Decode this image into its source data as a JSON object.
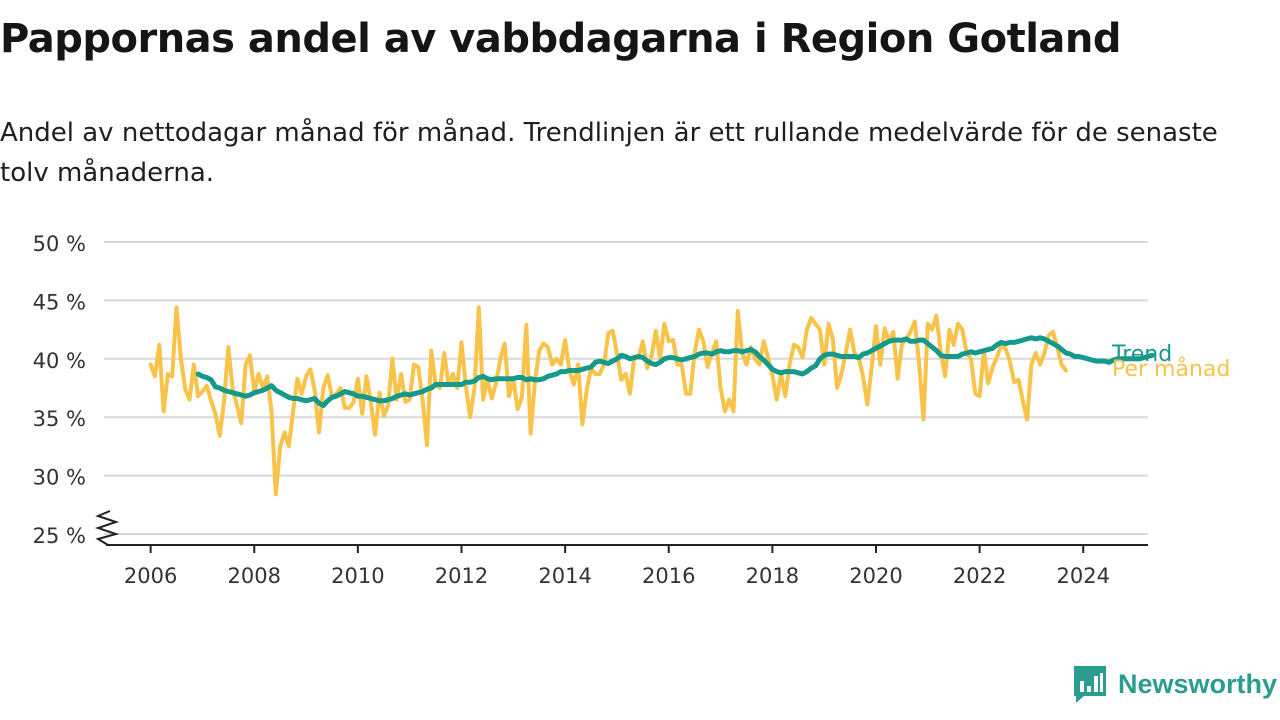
{
  "title": "Pappornas andel av vabbdagarna i Region Gotland",
  "subtitle": "Andel av nettodagar månad för månad. Trendlinjen är ett rullande medelvärde för de senaste tolv månaderna.",
  "brand": {
    "name": "Newsworthy",
    "icon": "newsworthy-chart-logo-icon",
    "color": "#2a9d8f"
  },
  "chart_data": {
    "type": "line",
    "title": "Pappornas andel av vabbdagarna i Region Gotland",
    "xlabel": "",
    "ylabel": "",
    "x_ticks": [
      2006,
      2008,
      2010,
      2012,
      2014,
      2016,
      2018,
      2020,
      2022,
      2024
    ],
    "x_tick_labels": [
      "2006",
      "2008",
      "2010",
      "2012",
      "2014",
      "2016",
      "2018",
      "2020",
      "2022",
      "2024"
    ],
    "xlim": [
      2005.1,
      2025.25
    ],
    "y_ticks": [
      25,
      30,
      35,
      40,
      45,
      50
    ],
    "y_tick_labels": [
      "25 %",
      "30 %",
      "35 %",
      "40 %",
      "45 %",
      "50 %"
    ],
    "ylim": [
      25,
      50
    ],
    "y_axis_break": true,
    "grid": true,
    "series": [
      {
        "name": "Per månad",
        "color": "#f9c349",
        "start": 2006.0,
        "step": 0.0833333,
        "values": [
          39.5,
          38.5,
          41.2,
          35.5,
          38.7,
          38.5,
          44.4,
          40,
          37.4,
          36.5,
          39.5,
          36.8,
          37.2,
          37.7,
          36.4,
          35.3,
          33.4,
          36.3,
          41,
          37.4,
          36,
          34.5,
          39.5,
          40.3,
          37.2,
          38.7,
          37.5,
          38.5,
          35.5,
          28.4,
          32.5,
          33.7,
          32.5,
          35.5,
          38.3,
          37,
          38.5,
          39.1,
          37.3,
          33.7,
          37.5,
          38.6,
          36.7,
          37,
          37.5,
          35.8,
          35.8,
          36.3,
          38.3,
          35.3,
          38.5,
          36.3,
          33.5,
          37.1,
          35.1,
          36,
          40,
          36.5,
          38.7,
          36.3,
          36.5,
          39.5,
          39.3,
          36.5,
          32.6,
          40.7,
          37.8,
          37.5,
          40.5,
          37.8,
          38.7,
          37.5,
          41.4,
          37.7,
          35,
          37.5,
          44.4,
          36.5,
          38.3,
          36.6,
          37.9,
          40,
          41.3,
          36.8,
          38.3,
          35.7,
          36.7,
          42.9,
          33.6,
          38,
          40.7,
          41.3,
          41,
          39.5,
          40,
          39.5,
          41.6,
          39,
          37.8,
          39.5,
          34.4,
          37.3,
          39.2,
          38.7,
          38.7,
          39.5,
          42.2,
          42.4,
          40.5,
          38.2,
          38.7,
          37,
          40.1,
          40.1,
          41.5,
          39.2,
          40.2,
          42.4,
          40,
          43,
          41.5,
          41.6,
          39.5,
          39.5,
          37,
          37,
          40.5,
          42.5,
          41.5,
          39.3,
          40.5,
          41.5,
          37.5,
          35.5,
          36.5,
          35.5,
          44.1,
          40.5,
          39.5,
          41,
          40,
          39.5,
          41.5,
          40.1,
          38.6,
          36.5,
          38.7,
          36.8,
          39.5,
          41.2,
          41,
          40.1,
          42.5,
          43.5,
          43,
          42.5,
          39.5,
          43,
          41.7,
          37.5,
          38.7,
          40.5,
          42.5,
          40.5,
          40.1,
          38.5,
          36.1,
          39.3,
          42.8,
          39.5,
          42.6,
          41.5,
          42.3,
          38.3,
          41.2,
          41.7,
          42.3,
          43.2,
          39.5,
          34.8,
          43,
          42.5,
          43.7,
          40.5,
          38.5,
          42.5,
          41.2,
          43,
          42.5,
          40.5,
          40,
          37,
          36.8,
          40.7,
          37.9,
          39.3,
          40.1,
          41.2,
          40.9,
          39.8,
          38,
          38.2,
          36.4,
          34.8,
          39.5,
          40.5,
          39.5,
          40.5,
          42,
          42.3,
          41,
          39.5,
          39
        ]
      },
      {
        "name": "Trend",
        "color": "#14998a",
        "start": 2006.917,
        "step": 0.0833333,
        "values": [
          38.7,
          38.5,
          38.4,
          38.2,
          37.6,
          37.5,
          37.3,
          37.2,
          37.1,
          37,
          36.9,
          36.8,
          36.9,
          37.1,
          37.2,
          37.3,
          37.5,
          37.7,
          37.3,
          37.1,
          36.9,
          36.7,
          36.6,
          36.6,
          36.5,
          36.4,
          36.5,
          36.6,
          36.2,
          36,
          36.4,
          36.7,
          36.8,
          37,
          37.2,
          37.1,
          37,
          36.8,
          36.8,
          36.7,
          36.6,
          36.5,
          36.4,
          36.4,
          36.5,
          36.6,
          36.8,
          36.9,
          37,
          36.9,
          37,
          37.1,
          37.2,
          37.4,
          37.5,
          37.8,
          37.8,
          37.8,
          37.8,
          37.8,
          37.8,
          37.8,
          38,
          38,
          38.1,
          38.4,
          38.5,
          38.3,
          38.2,
          38.3,
          38.3,
          38.3,
          38.3,
          38.3,
          38.4,
          38.4,
          38.2,
          38.3,
          38.2,
          38.2,
          38.3,
          38.5,
          38.6,
          38.7,
          38.9,
          38.9,
          39,
          39,
          39,
          39.1,
          39.2,
          39.3,
          39.7,
          39.8,
          39.7,
          39.6,
          39.8,
          40,
          40.3,
          40.2,
          40,
          40.1,
          40.2,
          40.1,
          39.8,
          39.6,
          39.5,
          39.7,
          40,
          40.1,
          40.1,
          40,
          39.9,
          40,
          40.1,
          40.2,
          40.4,
          40.5,
          40.5,
          40.4,
          40.6,
          40.7,
          40.6,
          40.6,
          40.7,
          40.7,
          40.6,
          40.7,
          40.8,
          40.6,
          40.2,
          39.9,
          39.5,
          39.1,
          38.9,
          38.8,
          38.9,
          38.9,
          38.9,
          38.8,
          38.7,
          38.9,
          39.2,
          39.4,
          40,
          40.3,
          40.4,
          40.4,
          40.3,
          40.2,
          40.2,
          40.2,
          40.2,
          40.1,
          40.4,
          40.5,
          40.7,
          40.9,
          41.1,
          41.3,
          41.5,
          41.6,
          41.6,
          41.6,
          41.7,
          41.5,
          41.5,
          41.6,
          41.6,
          41.3,
          41,
          40.7,
          40.3,
          40.2,
          40.2,
          40.2,
          40.2,
          40.4,
          40.5,
          40.6,
          40.5,
          40.6,
          40.7,
          40.8,
          40.9,
          41.2,
          41.4,
          41.3,
          41.4,
          41.4,
          41.5,
          41.6,
          41.7,
          41.8,
          41.7,
          41.8,
          41.7,
          41.5,
          41.3,
          41.1,
          40.8,
          40.5,
          40.4,
          40.2,
          40.2,
          40.1,
          40,
          39.9,
          39.8,
          39.8,
          39.8,
          39.7,
          39.9,
          40,
          40,
          40,
          40,
          40,
          40,
          40.1,
          40.2,
          40.3
        ]
      }
    ],
    "annotations": [
      {
        "text": "Trend",
        "series": "Trend",
        "placement": "end-of-line"
      },
      {
        "text": "Per månad",
        "series": "Per månad",
        "placement": "end-of-line"
      }
    ]
  }
}
